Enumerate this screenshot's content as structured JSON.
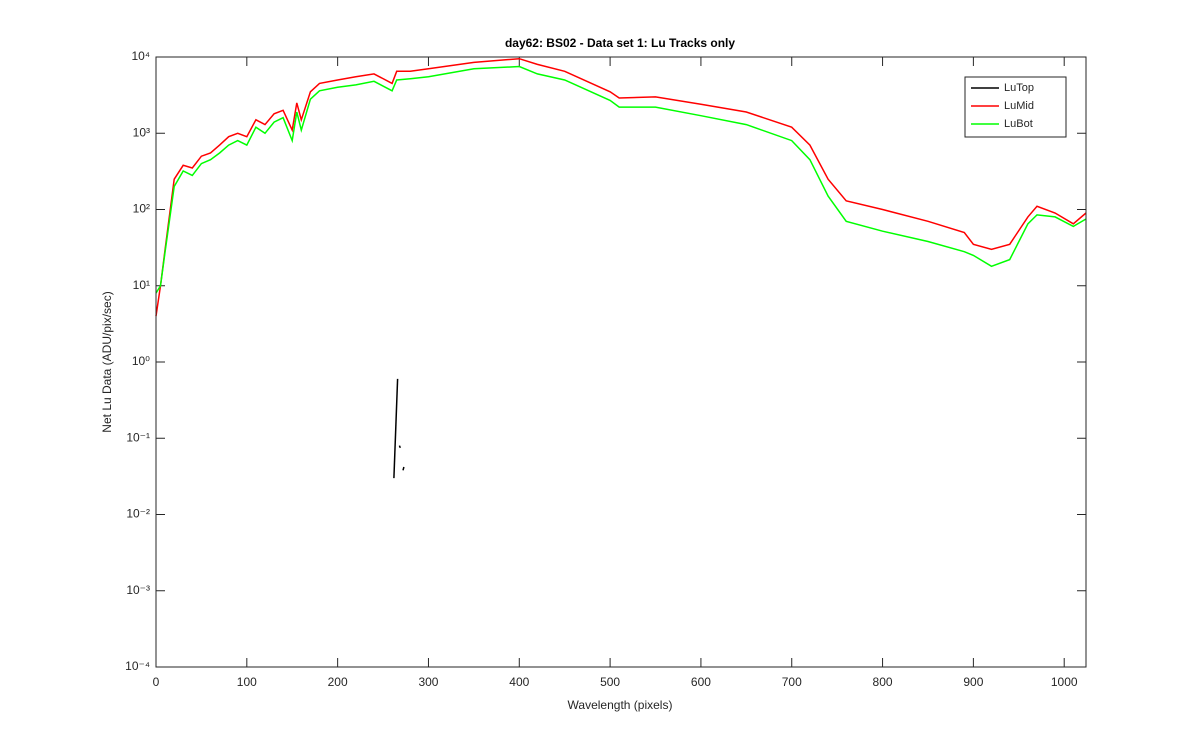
{
  "chart_data": {
    "type": "line",
    "title": "day62: BS02 - Data set 1: Lu Tracks only",
    "xlabel": "Wavelength (pixels)",
    "ylabel": "Net Lu Data (ADU/pix/sec)",
    "log_y": true,
    "legend": "upper right",
    "xlim": [
      0,
      1024
    ],
    "xticks": [
      0,
      100,
      200,
      300,
      400,
      500,
      600,
      700,
      800,
      900,
      1000
    ],
    "ylim": [
      0.0001,
      10000
    ],
    "yticks": [
      {
        "value": 0.0001,
        "label": "10⁻⁴"
      },
      {
        "value": 0.001,
        "label": "10⁻³"
      },
      {
        "value": 0.01,
        "label": "10⁻²"
      },
      {
        "value": 0.1,
        "label": "10⁻¹"
      },
      {
        "value": 1,
        "label": "10⁰"
      },
      {
        "value": 10,
        "label": "10¹"
      },
      {
        "value": 100,
        "label": "10²"
      },
      {
        "value": 1000,
        "label": "10³"
      },
      {
        "value": 10000,
        "label": "10⁴"
      }
    ],
    "x": [
      0,
      5,
      10,
      20,
      30,
      40,
      50,
      60,
      70,
      80,
      90,
      100,
      110,
      120,
      130,
      140,
      150,
      155,
      160,
      170,
      180,
      200,
      220,
      240,
      260,
      265,
      280,
      300,
      350,
      400,
      420,
      450,
      500,
      510,
      550,
      600,
      650,
      700,
      720,
      740,
      760,
      800,
      850,
      890,
      900,
      920,
      940,
      960,
      970,
      990,
      1010,
      1024
    ],
    "series": [
      {
        "name": "LuTop",
        "color": "#000000",
        "x": [
          262,
          266,
          267,
          268,
          269,
          270,
          272,
          273
        ],
        "values": [
          0.03,
          0.6,
          null,
          0.08,
          0.075,
          null,
          0.038,
          0.042
        ]
      },
      {
        "name": "LuMid",
        "color": "#ff0000",
        "values": [
          4,
          10,
          30,
          250,
          380,
          350,
          500,
          550,
          700,
          900,
          1000,
          900,
          1500,
          1300,
          1800,
          2000,
          1100,
          2500,
          1500,
          3500,
          4500,
          5000,
          5500,
          6000,
          4500,
          6500,
          6500,
          7000,
          8500,
          9500,
          8000,
          6500,
          3500,
          2900,
          3000,
          2400,
          1900,
          1200,
          700,
          250,
          130,
          100,
          70,
          50,
          35,
          30,
          35,
          80,
          110,
          90,
          65,
          90
        ]
      },
      {
        "name": "LuBot",
        "color": "#00ff00",
        "values": [
          8,
          10,
          28,
          200,
          320,
          280,
          400,
          450,
          550,
          700,
          800,
          700,
          1200,
          1000,
          1400,
          1600,
          800,
          1900,
          1100,
          2800,
          3600,
          4000,
          4300,
          4800,
          3600,
          5000,
          5200,
          5500,
          7000,
          7500,
          6000,
          5000,
          2700,
          2200,
          2200,
          1700,
          1300,
          800,
          450,
          150,
          70,
          52,
          38,
          28,
          25,
          18,
          22,
          65,
          85,
          80,
          60,
          75
        ]
      }
    ]
  }
}
